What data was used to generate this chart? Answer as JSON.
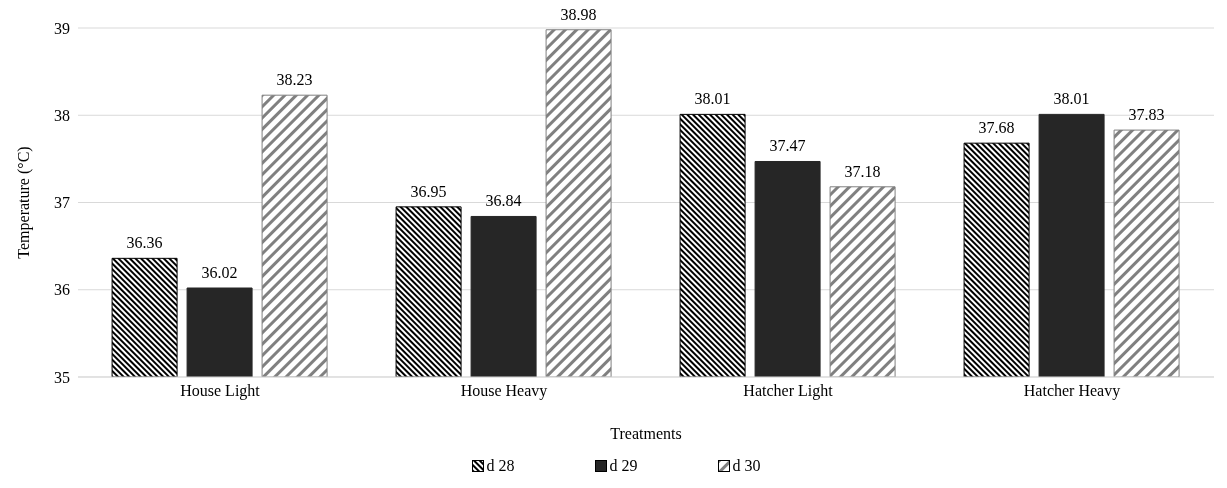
{
  "chart_data": {
    "type": "bar",
    "xlabel": "Treatments",
    "ylabel": "Temperature (°C)",
    "categories": [
      "House Light",
      "House Heavy",
      "Hatcher Light",
      "Hatcher Heavy"
    ],
    "series": [
      {
        "name": "d 28",
        "color": "#000000",
        "values": [
          36.36,
          36.95,
          38.01,
          37.68
        ]
      },
      {
        "name": "d 29",
        "color": "#262626",
        "values": [
          36.02,
          36.84,
          37.47,
          38.01
        ]
      },
      {
        "name": "d 30",
        "color": "#808080",
        "values": [
          38.23,
          38.98,
          37.18,
          37.83
        ]
      }
    ],
    "ylim": [
      35,
      39
    ],
    "yticks": [
      35,
      36,
      37,
      38,
      39
    ],
    "grid": "y",
    "legend": "bottom",
    "data_labels": true
  }
}
